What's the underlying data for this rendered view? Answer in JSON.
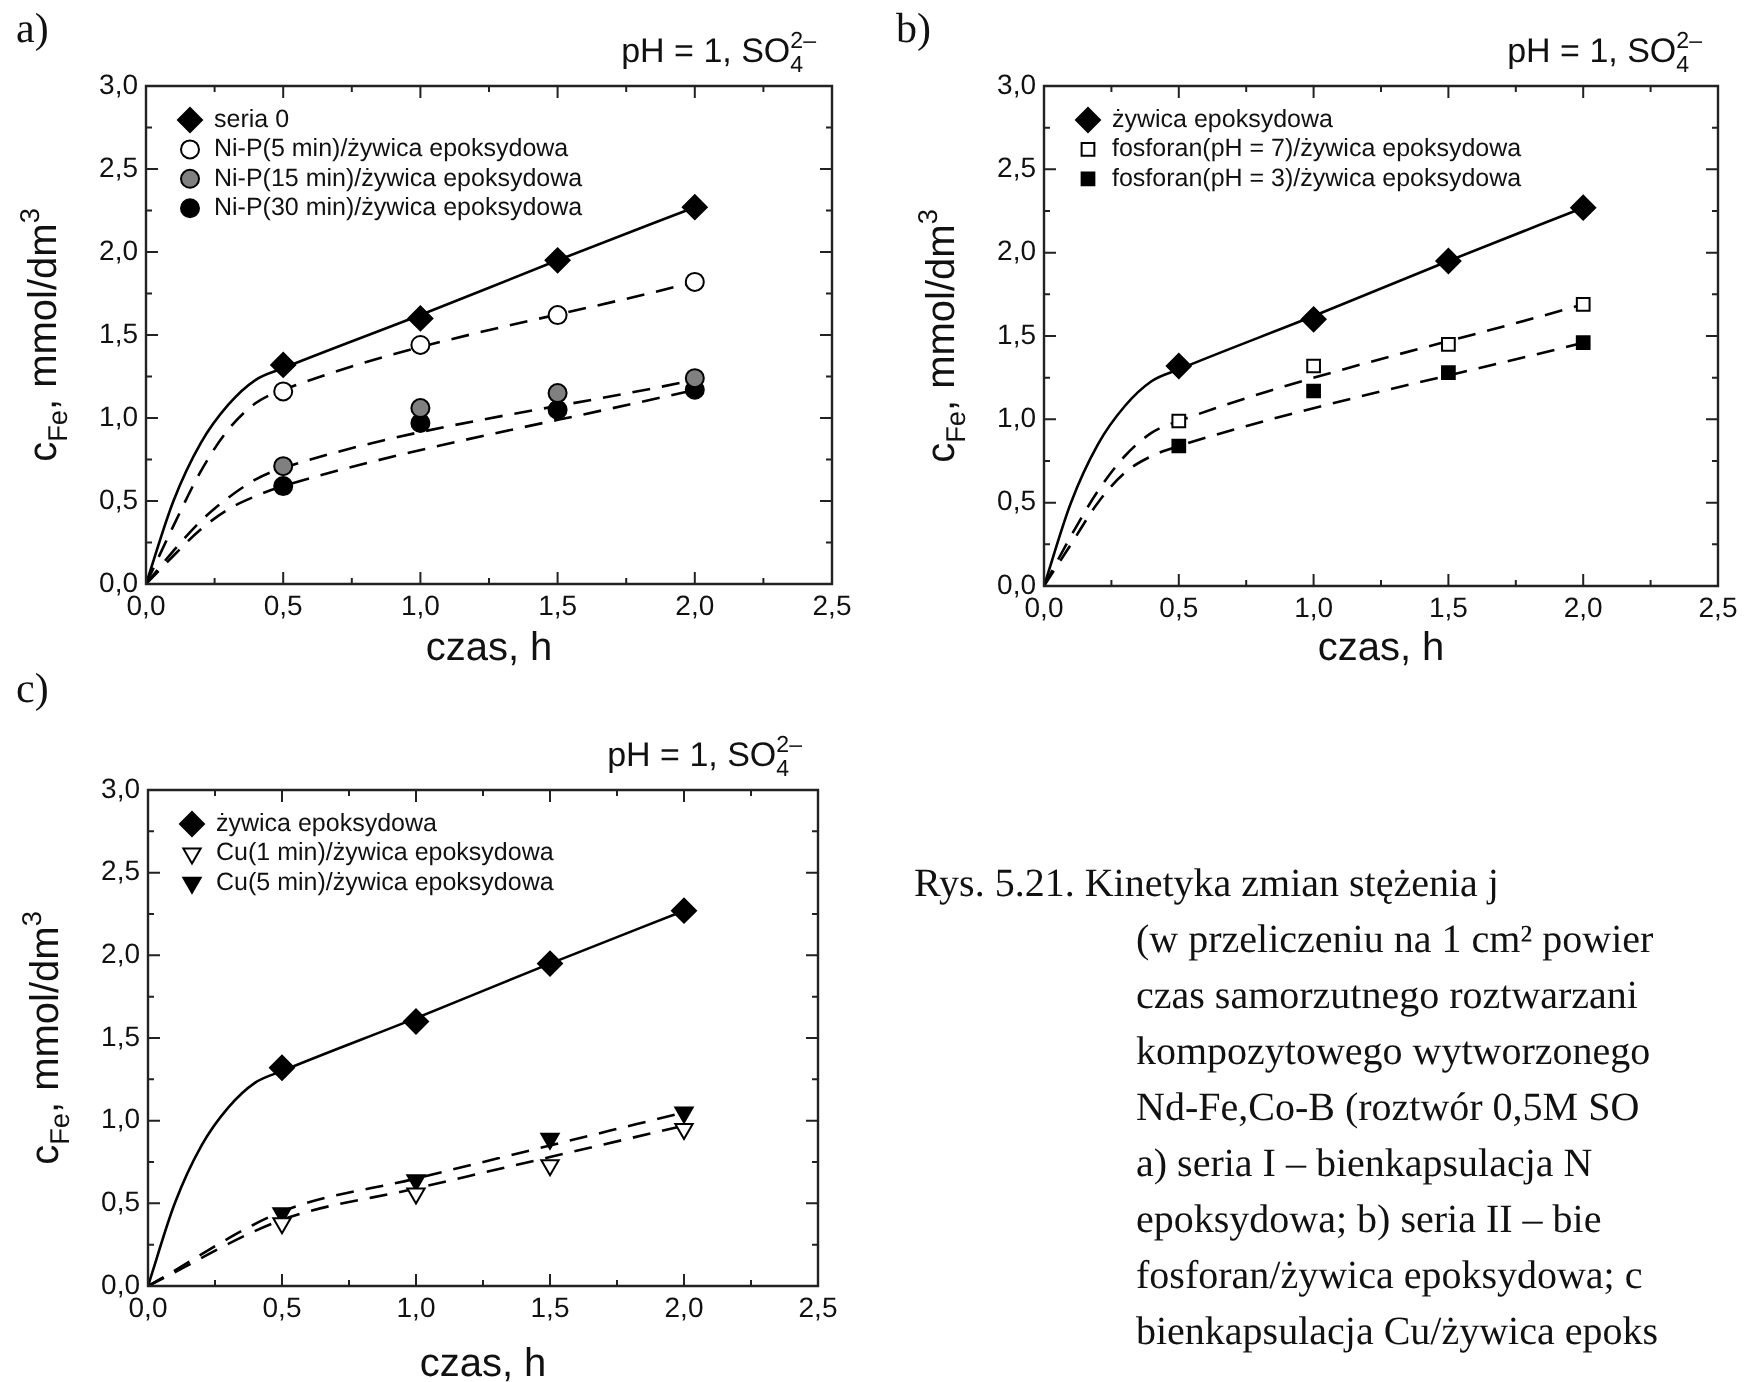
{
  "chart_data": [
    {
      "type": "scatter",
      "title": "a)",
      "subtitle": "pH = 1, SO$_{4}$$^{2–}$",
      "xlabel": "czas, h",
      "ylabel": "c$_{Fe}$, mmol/dm$^{3}$",
      "x": [
        0.5,
        1.0,
        1.5,
        2.0
      ],
      "xlim": [
        0,
        2.5
      ],
      "ylim": [
        0,
        3
      ],
      "xticks": [
        {
          "value": 0,
          "label": "0,0"
        },
        {
          "value": 0.25,
          "label": null
        },
        {
          "value": 0.5,
          "label": "0,5"
        },
        {
          "value": 0.75,
          "label": null
        },
        {
          "value": 1,
          "label": "1,0"
        },
        {
          "value": 1.25,
          "label": null
        },
        {
          "value": 1.5,
          "label": "1,5"
        },
        {
          "value": 1.75,
          "label": null
        },
        {
          "value": 2,
          "label": "2,0"
        },
        {
          "value": 2.25,
          "label": null
        },
        {
          "value": 2.5,
          "label": "2,5"
        }
      ],
      "yticks": [
        {
          "value": 0,
          "label": "0,0"
        },
        {
          "value": 0.25,
          "label": null
        },
        {
          "value": 0.5,
          "label": "0,5"
        },
        {
          "value": 0.75,
          "label": null
        },
        {
          "value": 1,
          "label": "1,0"
        },
        {
          "value": 1.25,
          "label": null
        },
        {
          "value": 1.5,
          "label": "1,5"
        },
        {
          "value": 1.75,
          "label": null
        },
        {
          "value": 2,
          "label": "2,0"
        },
        {
          "value": 2.25,
          "label": null
        },
        {
          "value": 2.5,
          "label": "2,5"
        },
        {
          "value": 2.75,
          "label": null
        },
        {
          "value": 3,
          "label": "3,0"
        }
      ],
      "legend": "top left",
      "grid": false,
      "series": [
        {
          "name": "seria 0",
          "type": "scatter",
          "marker": "diamond",
          "color": "#000000",
          "values": [
            1.32,
            1.6,
            1.95,
            2.27
          ]
        },
        {
          "name": "Ni-P(5 min)/żywica epoksydowa",
          "type": "scatter",
          "marker": "circle",
          "color": "#ffffff",
          "values": [
            1.16,
            1.44,
            1.62,
            1.82
          ]
        },
        {
          "name": "Ni-P(15 min)/żywica epoksydowa",
          "type": "scatter",
          "marker": "circle",
          "color": "#808080",
          "values": [
            0.71,
            1.06,
            1.15,
            1.24
          ]
        },
        {
          "name": "Ni-P(30 min)/żywica epoksydowa",
          "type": "scatter",
          "marker": "circle",
          "color": "#000000",
          "values": [
            0.59,
            0.97,
            1.05,
            1.17
          ]
        },
        {
          "type": "line",
          "marker": "none",
          "line_style": "solid",
          "color": "#000000",
          "x": [
            0,
            0.1,
            0.2,
            0.3,
            0.4,
            0.5,
            1.0,
            1.5,
            2.0
          ],
          "values": [
            0,
            0.5,
            0.85,
            1.08,
            1.23,
            1.3,
            1.62,
            1.95,
            2.27
          ]
        },
        {
          "type": "line",
          "marker": "none",
          "line_style": "dashed",
          "color": "#000000",
          "x": [
            0,
            0.1,
            0.2,
            0.3,
            0.4,
            0.5,
            2.0
          ],
          "values": [
            0,
            0.35,
            0.68,
            0.93,
            1.09,
            1.17,
            1.82
          ]
        },
        {
          "type": "line",
          "marker": "none",
          "line_style": "dashed",
          "color": "#000000",
          "x": [
            0,
            0.1,
            0.2,
            0.3,
            0.4,
            0.5,
            2.0
          ],
          "values": [
            0,
            0.2,
            0.38,
            0.52,
            0.63,
            0.7,
            1.23
          ]
        },
        {
          "type": "line",
          "marker": "none",
          "line_style": "dashed",
          "color": "#000000",
          "x": [
            0,
            0.1,
            0.2,
            0.3,
            0.4,
            0.5,
            2.0
          ],
          "values": [
            0,
            0.17,
            0.33,
            0.45,
            0.53,
            0.59,
            1.17
          ]
        }
      ]
    },
    {
      "type": "scatter",
      "title": "b)",
      "subtitle": "pH = 1, SO$_{4}$$^{2–}$",
      "xlabel": "czas, h",
      "ylabel": "c$_{Fe}$, mmol/dm$^{3}$",
      "x": [
        0.5,
        1.0,
        1.5,
        2.0
      ],
      "xlim": [
        0,
        2.5
      ],
      "ylim": [
        0,
        3
      ],
      "xticks": [
        {
          "value": 0,
          "label": "0,0"
        },
        {
          "value": 0.25,
          "label": null
        },
        {
          "value": 0.5,
          "label": "0,5"
        },
        {
          "value": 0.75,
          "label": null
        },
        {
          "value": 1,
          "label": "1,0"
        },
        {
          "value": 1.25,
          "label": null
        },
        {
          "value": 1.5,
          "label": "1,5"
        },
        {
          "value": 1.75,
          "label": null
        },
        {
          "value": 2,
          "label": "2,0"
        },
        {
          "value": 2.25,
          "label": null
        },
        {
          "value": 2.5,
          "label": "2,5"
        }
      ],
      "yticks": [
        {
          "value": 0,
          "label": "0,0"
        },
        {
          "value": 0.25,
          "label": null
        },
        {
          "value": 0.5,
          "label": "0,5"
        },
        {
          "value": 0.75,
          "label": null
        },
        {
          "value": 1,
          "label": "1,0"
        },
        {
          "value": 1.25,
          "label": null
        },
        {
          "value": 1.5,
          "label": "1,5"
        },
        {
          "value": 1.75,
          "label": null
        },
        {
          "value": 2,
          "label": "2,0"
        },
        {
          "value": 2.25,
          "label": null
        },
        {
          "value": 2.5,
          "label": "2,5"
        },
        {
          "value": 2.75,
          "label": null
        },
        {
          "value": 3,
          "label": "3,0"
        }
      ],
      "legend": "top left",
      "grid": false,
      "series": [
        {
          "name": "żywica epoksydowa",
          "type": "scatter",
          "marker": "diamond",
          "color": "#000000",
          "values": [
            1.32,
            1.6,
            1.95,
            2.27
          ]
        },
        {
          "name": "fosforan(pH = 7)/żywica epoksydowa",
          "type": "scatter",
          "marker": "square",
          "color": "#ffffff",
          "values": [
            0.99,
            1.32,
            1.45,
            1.69
          ]
        },
        {
          "name": "fosforan(pH = 3)/żywica epoksydowa",
          "type": "scatter",
          "marker": "square",
          "color": "#000000",
          "values": [
            0.84,
            1.17,
            1.28,
            1.46
          ]
        },
        {
          "type": "line",
          "marker": "none",
          "line_style": "solid",
          "color": "#000000",
          "x": [
            0,
            0.1,
            0.2,
            0.3,
            0.4,
            0.5,
            1.0,
            1.5,
            2.0
          ],
          "values": [
            0,
            0.5,
            0.85,
            1.08,
            1.23,
            1.3,
            1.62,
            1.95,
            2.27
          ]
        },
        {
          "type": "line",
          "marker": "none",
          "line_style": "dashed",
          "color": "#000000",
          "x": [
            0,
            0.1,
            0.2,
            0.3,
            0.4,
            0.5,
            2.0
          ],
          "values": [
            0,
            0.3,
            0.57,
            0.78,
            0.92,
            0.99,
            1.69
          ]
        },
        {
          "type": "line",
          "marker": "none",
          "line_style": "dashed",
          "color": "#000000",
          "x": [
            0,
            0.1,
            0.2,
            0.3,
            0.4,
            0.5,
            2.0
          ],
          "values": [
            0,
            0.25,
            0.5,
            0.68,
            0.78,
            0.84,
            1.46
          ]
        }
      ]
    },
    {
      "type": "scatter",
      "title": "c)",
      "subtitle": "pH = 1, SO$_{4}$$^{2–}$",
      "xlabel": "czas, h",
      "ylabel": "c$_{Fe}$, mmol/dm$^{3}$",
      "x": [
        0.5,
        1.0,
        1.5,
        2.0
      ],
      "xlim": [
        0,
        2.5
      ],
      "ylim": [
        0,
        3
      ],
      "xticks": [
        {
          "value": 0,
          "label": "0,0"
        },
        {
          "value": 0.25,
          "label": null
        },
        {
          "value": 0.5,
          "label": "0,5"
        },
        {
          "value": 0.75,
          "label": null
        },
        {
          "value": 1,
          "label": "1,0"
        },
        {
          "value": 1.25,
          "label": null
        },
        {
          "value": 1.5,
          "label": "1,5"
        },
        {
          "value": 1.75,
          "label": null
        },
        {
          "value": 2,
          "label": "2,0"
        },
        {
          "value": 2.25,
          "label": null
        },
        {
          "value": 2.5,
          "label": "2,5"
        }
      ],
      "yticks": [
        {
          "value": 0,
          "label": "0,0"
        },
        {
          "value": 0.25,
          "label": null
        },
        {
          "value": 0.5,
          "label": "0,5"
        },
        {
          "value": 0.75,
          "label": null
        },
        {
          "value": 1,
          "label": "1,0"
        },
        {
          "value": 1.25,
          "label": null
        },
        {
          "value": 1.5,
          "label": "1,5"
        },
        {
          "value": 1.75,
          "label": null
        },
        {
          "value": 2,
          "label": "2,0"
        },
        {
          "value": 2.25,
          "label": null
        },
        {
          "value": 2.5,
          "label": "2,5"
        },
        {
          "value": 2.75,
          "label": null
        },
        {
          "value": 3,
          "label": "3,0"
        }
      ],
      "legend": "top left",
      "grid": false,
      "series": [
        {
          "name": "żywica epoksydowa",
          "type": "scatter",
          "marker": "diamond",
          "color": "#000000",
          "values": [
            1.32,
            1.6,
            1.95,
            2.27
          ]
        },
        {
          "name": "Cu(1 min)/żywica epoksydowa",
          "type": "scatter",
          "marker": "triangle",
          "color": "#ffffff",
          "values": [
            0.38,
            0.56,
            0.73,
            0.95
          ]
        },
        {
          "name": "Cu(5 min)/żywica epoksydowa",
          "type": "scatter",
          "marker": "triangle",
          "color": "#000000",
          "values": [
            0.44,
            0.64,
            0.89,
            1.05
          ]
        },
        {
          "type": "line",
          "marker": "none",
          "line_style": "solid",
          "color": "#000000",
          "x": [
            0,
            0.1,
            0.2,
            0.3,
            0.4,
            0.5,
            1.0,
            1.5,
            2.0
          ],
          "values": [
            0,
            0.5,
            0.85,
            1.08,
            1.23,
            1.3,
            1.62,
            1.95,
            2.27
          ]
        },
        {
          "type": "line",
          "marker": "none",
          "line_style": "dashed",
          "color": "#000000",
          "x": [
            0,
            0.5,
            1.0,
            1.5,
            2.0
          ],
          "values": [
            0,
            0.4,
            0.59,
            0.78,
            0.97
          ]
        },
        {
          "type": "line",
          "marker": "none",
          "line_style": "dashed",
          "color": "#000000",
          "x": [
            0,
            0.5,
            1.0,
            1.5,
            2.0
          ],
          "values": [
            0,
            0.45,
            0.65,
            0.85,
            1.05
          ]
        }
      ],
      "annotations": [
        "Rys. 5.21. Kinetyka zmian stężenia j",
        "(w przeliczeniu na 1 cm² powier",
        "czas samorzutnego roztwarzani",
        "kompozytowego wytworzonego",
        "Nd-Fe,Co-B (roztwór 0,5M SO",
        "a) seria I – bienkapsulacja N",
        "epoksydowa; b) seria II – bie",
        "fosforan/żywica epoksydowa; c",
        "bienkapsulacja Cu/żywica epoks"
      ]
    }
  ]
}
